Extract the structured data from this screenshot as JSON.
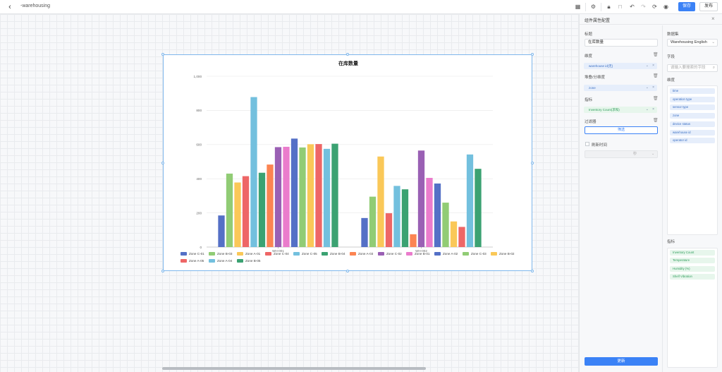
{
  "app": {
    "title": "-warehousing"
  },
  "toolbar": {
    "save_label": "保存",
    "publish_label": "发布"
  },
  "panel": {
    "title": "组件属性配置",
    "title_label": "标题",
    "title_value": "在库数量",
    "dimension_label": "维度",
    "dimension_value": "warehouse id(无)",
    "stack_label": "堆叠/分维度",
    "stack_value": "zone",
    "metric_label": "指标",
    "metric_value": "Inventory Count(求和)",
    "filter_label": "过滤器",
    "filter_button": "筛选",
    "refresh_label": "刷新时间",
    "refresh_unit": "秒",
    "update_button": "更新",
    "dataset_label": "数据集",
    "dataset_value": "Warehousing English",
    "fields_label": "字段",
    "fields_search_placeholder": "请输入要搜索的字段",
    "dimensions_label": "维度",
    "dimensions": [
      "time",
      "operation type",
      "sensor type",
      "zone",
      "device status",
      "warehouse id",
      "operator id"
    ],
    "metrics_label": "指标",
    "metrics": [
      "Inventory Count",
      "Temperature",
      "Humidity (%)",
      "Shelf Vibration"
    ]
  },
  "chart_data": {
    "type": "bar",
    "title": "在库数量",
    "categories": [
      "WH-001",
      "WH-002"
    ],
    "ylim": [
      0,
      1000
    ],
    "yticks": [
      "0",
      "200",
      "400",
      "600",
      "800",
      "1,000"
    ],
    "grid": true,
    "legend_position": "bottom",
    "series": [
      {
        "name": "Zone C-01",
        "color": "#5470c6",
        "values": [
          185,
          170
        ]
      },
      {
        "name": "Zone B-03",
        "color": "#91cc75",
        "values": [
          430,
          295
        ]
      },
      {
        "name": "Zone A-01",
        "color": "#fac858",
        "values": [
          378,
          530
        ]
      },
      {
        "name": "Zone C-04",
        "color": "#ee6666",
        "values": [
          415,
          198
        ]
      },
      {
        "name": "Zone C-05",
        "color": "#73c0de",
        "values": [
          878,
          358
        ]
      },
      {
        "name": "Zone B-04",
        "color": "#3ba272",
        "values": [
          435,
          338
        ]
      },
      {
        "name": "Zone A-03",
        "color": "#fc8452",
        "values": [
          483,
          75
        ]
      },
      {
        "name": "Zone C-02",
        "color": "#9a60b4",
        "values": [
          585,
          565
        ]
      },
      {
        "name": "Zone B-01",
        "color": "#ea7ccc",
        "values": [
          587,
          405
        ]
      },
      {
        "name": "Zone A-02",
        "color": "#5470c6",
        "values": [
          635,
          372
        ]
      },
      {
        "name": "Zone C-03",
        "color": "#91cc75",
        "values": [
          583,
          260
        ]
      },
      {
        "name": "Zone B-02",
        "color": "#fac858",
        "values": [
          602,
          150
        ]
      },
      {
        "name": "Zone A-05",
        "color": "#ee6666",
        "values": [
          603,
          118
        ]
      },
      {
        "name": "Zone A-04",
        "color": "#73c0de",
        "values": [
          575,
          542
        ]
      },
      {
        "name": "Zone B-05",
        "color": "#3ba272",
        "values": [
          605,
          458
        ]
      }
    ]
  }
}
